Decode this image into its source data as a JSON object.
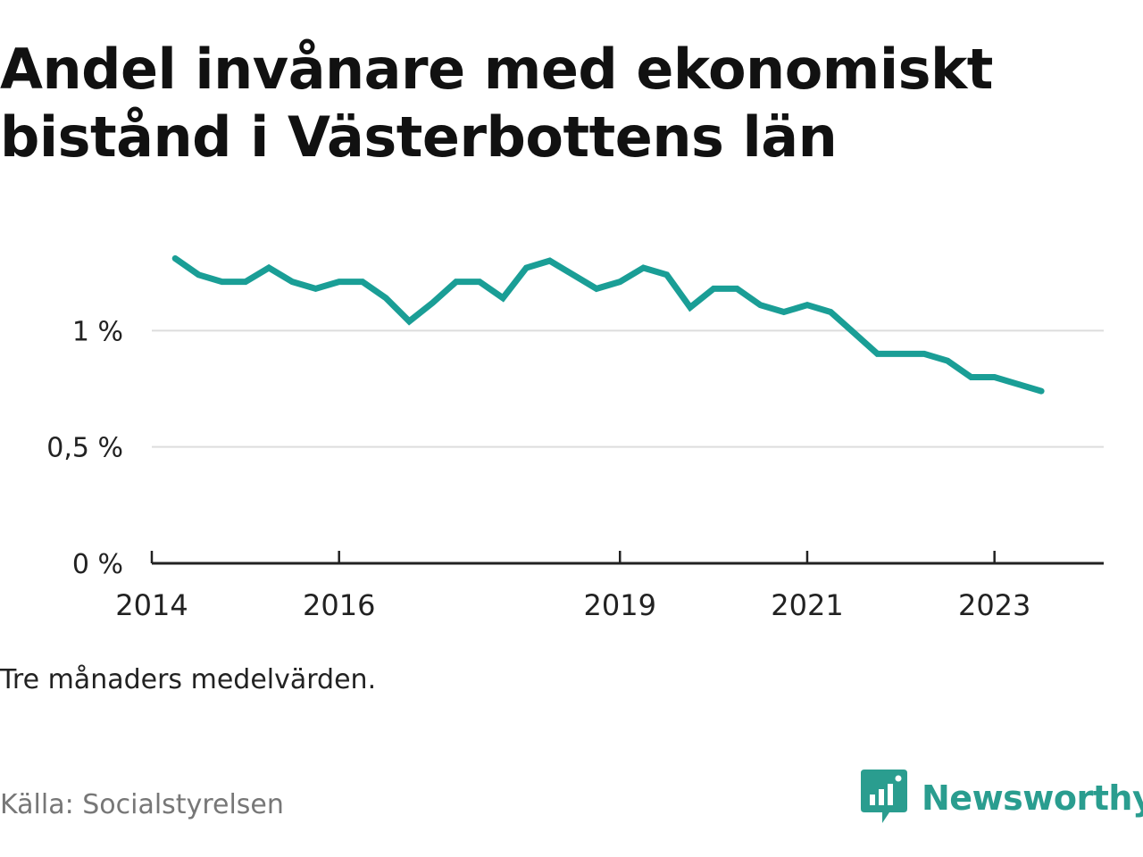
{
  "title": "Andel invånare med ekonomiskt bistånd i Västerbottens län",
  "note": "Tre månaders medelvärden.",
  "source": "Källa: Socialstyrelsen",
  "brand": {
    "name": "Newsworthy",
    "icon": "newsworthy-logo-icon",
    "color": "#2a9d8f"
  },
  "colors": {
    "line": "#1a9e96",
    "grid": "#dddddd",
    "axis": "#222222"
  },
  "chart_data": {
    "type": "line",
    "x": [
      "2014-04",
      "2014-07",
      "2014-10",
      "2015-01",
      "2015-04",
      "2015-07",
      "2015-10",
      "2016-01",
      "2016-04",
      "2016-07",
      "2016-10",
      "2017-01",
      "2017-04",
      "2017-07",
      "2017-10",
      "2018-01",
      "2018-04",
      "2018-07",
      "2018-10",
      "2019-01",
      "2019-04",
      "2019-07",
      "2019-10",
      "2020-01",
      "2020-04",
      "2020-07",
      "2020-10",
      "2021-01",
      "2021-04",
      "2021-07",
      "2021-10",
      "2022-01",
      "2022-04",
      "2022-07",
      "2022-10",
      "2023-01",
      "2023-04",
      "2023-07"
    ],
    "series": [
      {
        "values": [
          1.31,
          1.24,
          1.21,
          1.21,
          1.27,
          1.21,
          1.18,
          1.21,
          1.21,
          1.14,
          1.04,
          1.12,
          1.21,
          1.21,
          1.14,
          1.27,
          1.3,
          1.24,
          1.18,
          1.21,
          1.27,
          1.24,
          1.1,
          1.18,
          1.18,
          1.11,
          1.08,
          1.11,
          1.08,
          0.99,
          0.9,
          0.9,
          0.9,
          0.87,
          0.8,
          0.8,
          0.77,
          0.74
        ]
      }
    ],
    "x_ticks": [
      "2014",
      "2016",
      "2019",
      "2021",
      "2023"
    ],
    "y_ticks": [
      "0 %",
      "0,5 %",
      "1 %"
    ],
    "y_tick_values": [
      0,
      0.5,
      1.0
    ],
    "ylim": [
      0,
      1.5
    ],
    "xlim": [
      "2014",
      "2024-03"
    ],
    "grid": true,
    "legend": "none"
  }
}
